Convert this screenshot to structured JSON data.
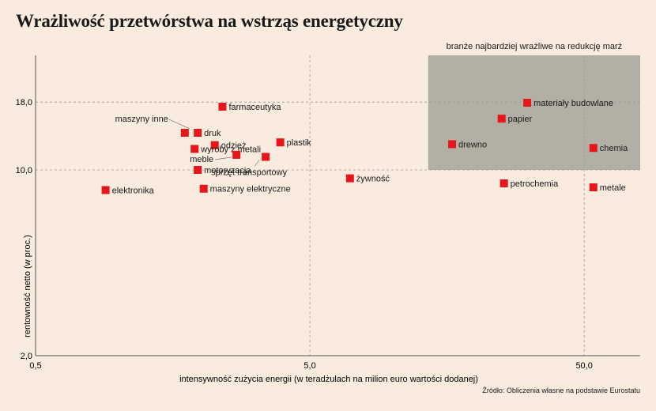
{
  "title": "Wrażliwość przetwórstwa na wstrząs energetyczny",
  "source": "Źródło: Obliczenia własne na podstawie Eurostatu",
  "colors": {
    "background": "#f9ebdd",
    "point": "#e8151b",
    "highlight": "#b2afa4",
    "grid": "#9a9a9a"
  },
  "chart_data": {
    "type": "scatter",
    "title": "Wrażliwość przetwórstwa na wstrząs energetyczny",
    "xlabel": "intensywność zużycia energii (w teradżulach na milion euro wartości dodanej)",
    "ylabel": "rentowność netto (w proc.)",
    "x_scale": "log",
    "y_scale": "log",
    "xlim": [
      0.5,
      80
    ],
    "ylim": [
      2.0,
      27
    ],
    "x_ticks": [
      {
        "value": 0.5,
        "label": "0,5"
      },
      {
        "value": 5.0,
        "label": "5,0"
      },
      {
        "value": 50.0,
        "label": "50,0"
      }
    ],
    "y_ticks": [
      {
        "value": 2.0,
        "label": "2,0"
      },
      {
        "value": 10.0,
        "label": "10,0"
      },
      {
        "value": 18.0,
        "label": "18,0"
      }
    ],
    "grid": "dashed at tick values",
    "highlight_region": {
      "label": "branże najbardziej wrażliwe na redukcję marż",
      "x_from": 13.5,
      "x_to": 80,
      "y_from": 10.0,
      "y_to": 27
    },
    "points": [
      {
        "label": "farmaceutyka",
        "x": 2.4,
        "y": 17.3,
        "label_pos": "right"
      },
      {
        "label": "maszyny inne",
        "x": 1.75,
        "y": 13.8,
        "label_pos": "upper-left"
      },
      {
        "label": "druk",
        "x": 1.95,
        "y": 13.8,
        "label_pos": "right"
      },
      {
        "label": "odzież",
        "x": 2.25,
        "y": 12.4,
        "label_pos": "right"
      },
      {
        "label": "wyroby z metali",
        "x": 1.9,
        "y": 12.0,
        "label_pos": "right"
      },
      {
        "label": "plastik",
        "x": 3.9,
        "y": 12.7,
        "label_pos": "right"
      },
      {
        "label": "meble",
        "x": 2.7,
        "y": 11.4,
        "label_pos": "lower-left"
      },
      {
        "label": "sprzęt transportowy",
        "x": 3.45,
        "y": 11.2,
        "label_pos": "below"
      },
      {
        "label": "motoryzacja",
        "x": 1.95,
        "y": 10.0,
        "label_pos": "right"
      },
      {
        "label": "elektronika",
        "x": 0.9,
        "y": 8.4,
        "label_pos": "right"
      },
      {
        "label": "maszyny elektryczne",
        "x": 2.05,
        "y": 8.5,
        "label_pos": "right"
      },
      {
        "label": "żywność",
        "x": 7.0,
        "y": 9.3,
        "label_pos": "right"
      },
      {
        "label": "petrochemia",
        "x": 25.5,
        "y": 8.9,
        "label_pos": "right"
      },
      {
        "label": "metale",
        "x": 54.0,
        "y": 8.6,
        "label_pos": "right"
      },
      {
        "label": "materiały budowlane",
        "x": 31.0,
        "y": 17.9,
        "label_pos": "right"
      },
      {
        "label": "papier",
        "x": 25.0,
        "y": 15.6,
        "label_pos": "right"
      },
      {
        "label": "drewno",
        "x": 16.5,
        "y": 12.5,
        "label_pos": "right"
      },
      {
        "label": "chemia",
        "x": 54.0,
        "y": 12.1,
        "label_pos": "right"
      }
    ]
  }
}
